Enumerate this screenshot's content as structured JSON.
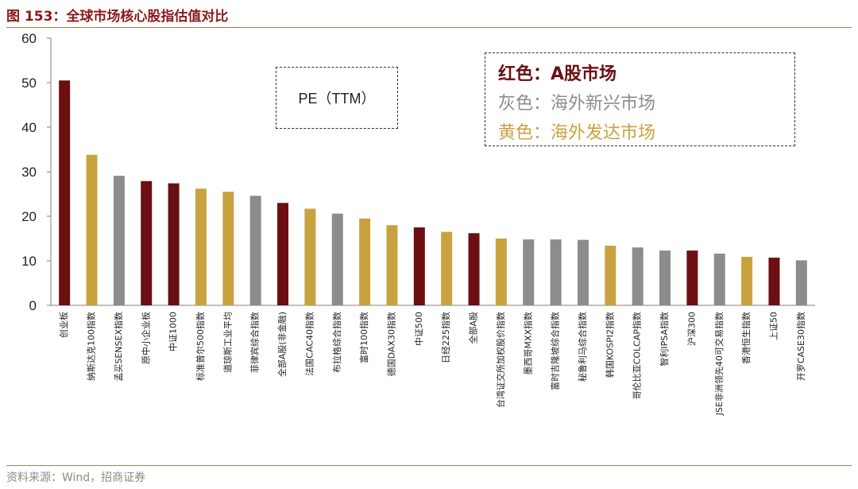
{
  "title": "图 153：全球市场核心股指估值对比",
  "source": "资料来源：Wind，招商证券",
  "pe_label": "PE（TTM）",
  "legend": {
    "a_share": "红色：A股市场",
    "emerging": "灰色：海外新兴市场",
    "developed": "黄色：海外发达市场"
  },
  "colors": {
    "a_share": "#6b0f12",
    "emerging": "#8c8c8c",
    "developed": "#c9a240",
    "axis": "#808080",
    "title": "#8b1a1a"
  },
  "chart_data": {
    "type": "bar",
    "ylim": [
      0,
      60
    ],
    "yticks": [
      0,
      10,
      20,
      30,
      40,
      50,
      60
    ],
    "grid": false,
    "categories": [
      "创业板",
      "纳斯达克100指数",
      "孟买SENSEX指数",
      "原中小企业板",
      "中证1000",
      "标准普尔500指数",
      "道琼斯工业平均",
      "菲律宾综合指数",
      "全部A股(非金融)",
      "法国CAC40指数",
      "布拉格综合指数",
      "富时100指数",
      "德国DAX30指数",
      "中证500",
      "日经225指数",
      "全部A股",
      "台湾证交所加权股价指数",
      "墨西哥MXX指数",
      "富时吉隆坡综合指数",
      "秘鲁利马综合指数",
      "韩国KOSPI2指数",
      "哥伦比亚COLCAP指数",
      "智利IPSA指数",
      "沪深300",
      "JSE非洲领先40可交易指数",
      "香港恒生指数",
      "上证50",
      "开罗CASE30指数"
    ],
    "values": [
      50.5,
      33.8,
      29.1,
      27.9,
      27.4,
      26.2,
      25.5,
      24.6,
      23.0,
      21.7,
      20.6,
      19.5,
      18.0,
      17.5,
      16.5,
      16.2,
      15.0,
      14.8,
      14.8,
      14.7,
      13.4,
      13.0,
      12.3,
      12.3,
      11.6,
      10.9,
      10.7,
      10.1
    ],
    "groups": [
      "a_share",
      "developed",
      "emerging",
      "a_share",
      "a_share",
      "developed",
      "developed",
      "emerging",
      "a_share",
      "developed",
      "emerging",
      "developed",
      "developed",
      "a_share",
      "developed",
      "a_share",
      "developed",
      "emerging",
      "emerging",
      "emerging",
      "developed",
      "emerging",
      "emerging",
      "a_share",
      "emerging",
      "developed",
      "a_share",
      "emerging"
    ]
  }
}
